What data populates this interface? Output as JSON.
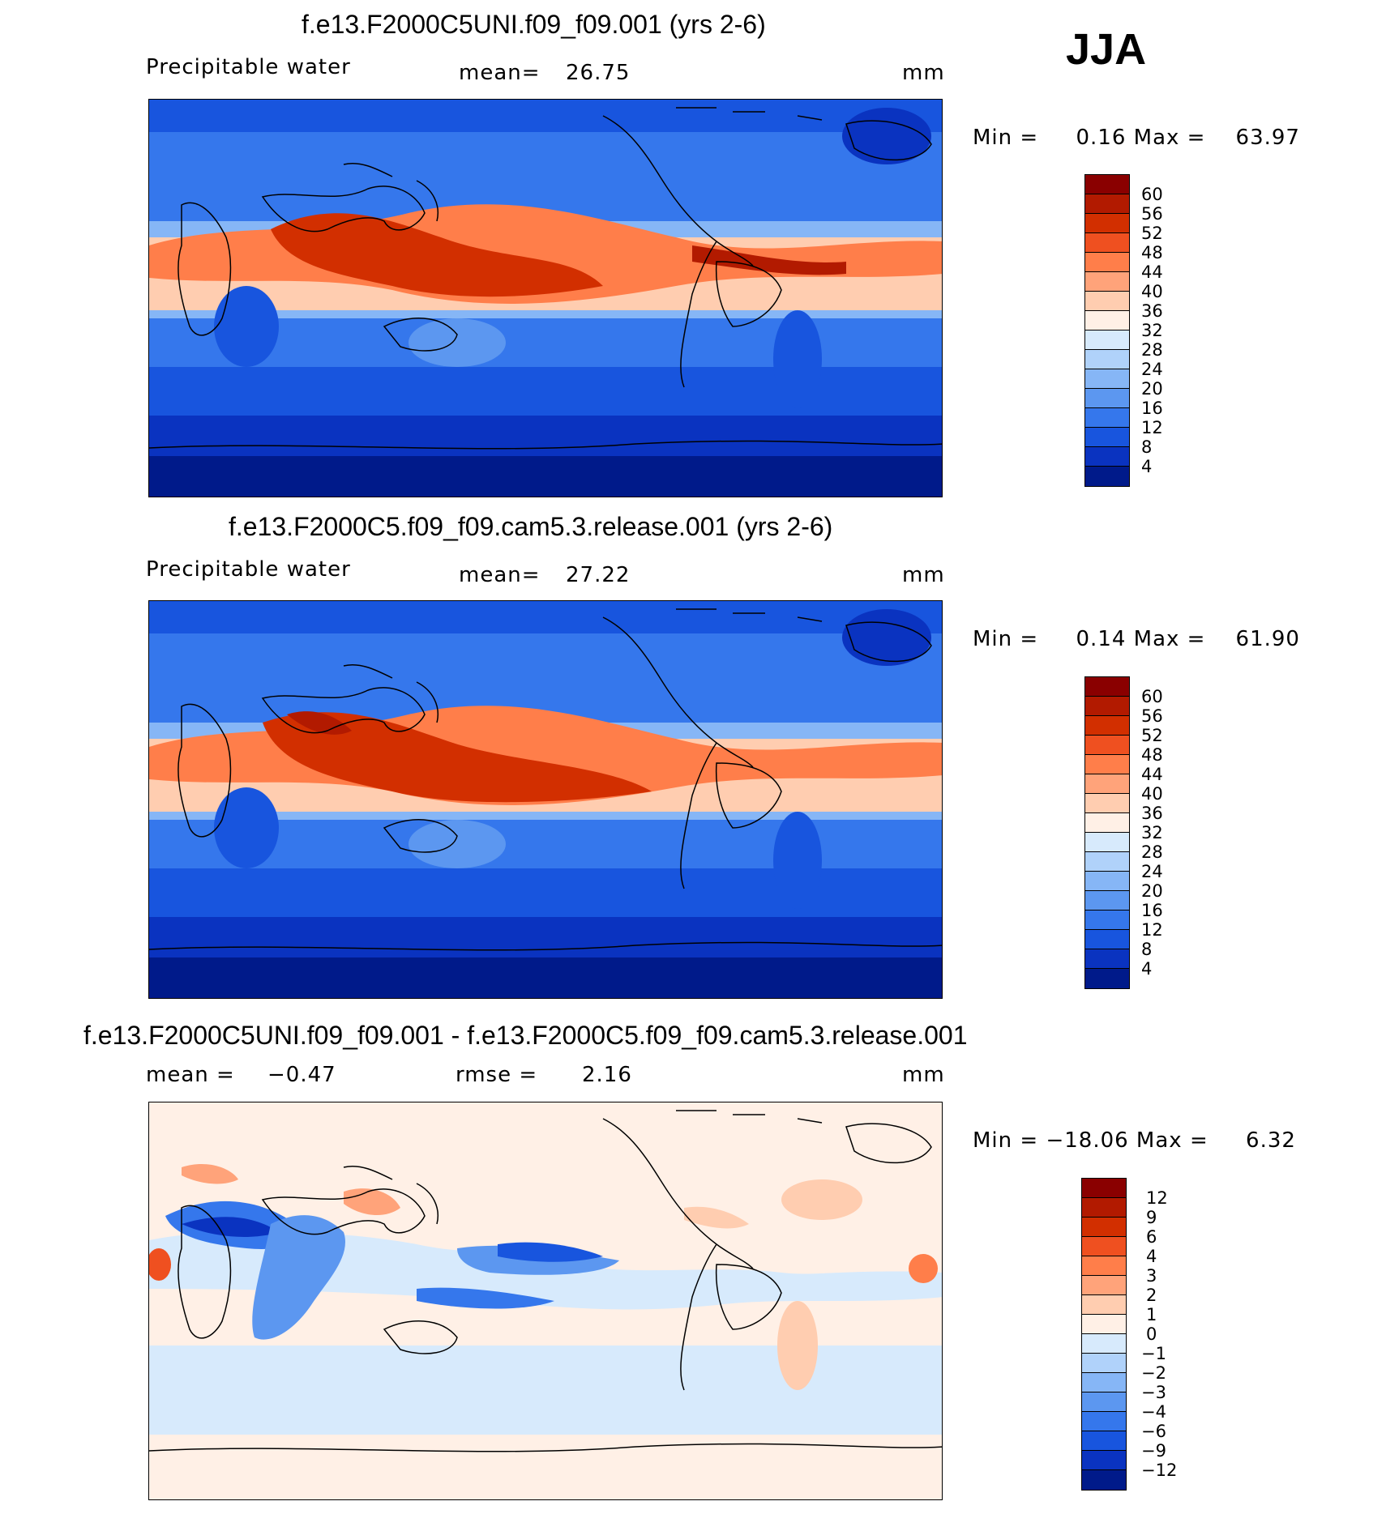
{
  "season": "JJA",
  "panels": [
    {
      "title": "f.e13.F2000C5UNI.f09_f09.001 (yrs 2-6)",
      "left_label": "Precipitable water",
      "stat_label": "mean=",
      "stat_value": "26.75",
      "stat2_label": "",
      "stat2_value": "",
      "units": "mm",
      "minmax": "Min =     0.16 Max =    63.97",
      "levels": [
        "60",
        "56",
        "52",
        "48",
        "44",
        "40",
        "36",
        "32",
        "28",
        "24",
        "20",
        "16",
        "12",
        "8",
        "4"
      ],
      "colors": [
        "#8a0000",
        "#b21a00",
        "#d22f00",
        "#ef5020",
        "#ff7e4a",
        "#ffa37a",
        "#ffcdb0",
        "#fff0e6",
        "#d7eafc",
        "#b0d2fa",
        "#86b6f6",
        "#5c97f0",
        "#3577ec",
        "#1855de",
        "#0a33c0",
        "#001a8a"
      ]
    },
    {
      "title": "f.e13.F2000C5.f09_f09.cam5.3.release.001 (yrs 2-6)",
      "left_label": "Precipitable water",
      "stat_label": "mean=",
      "stat_value": "27.22",
      "stat2_label": "",
      "stat2_value": "",
      "units": "mm",
      "minmax": "Min =     0.14 Max =    61.90",
      "levels": [
        "60",
        "56",
        "52",
        "48",
        "44",
        "40",
        "36",
        "32",
        "28",
        "24",
        "20",
        "16",
        "12",
        "8",
        "4"
      ],
      "colors": [
        "#8a0000",
        "#b21a00",
        "#d22f00",
        "#ef5020",
        "#ff7e4a",
        "#ffa37a",
        "#ffcdb0",
        "#fff0e6",
        "#d7eafc",
        "#b0d2fa",
        "#86b6f6",
        "#5c97f0",
        "#3577ec",
        "#1855de",
        "#0a33c0",
        "#001a8a"
      ]
    },
    {
      "title": "f.e13.F2000C5UNI.f09_f09.001 - f.e13.F2000C5.f09_f09.cam5.3.release.001",
      "left_label": "mean =",
      "stat_label": "",
      "stat_value": "−0.47",
      "stat2_label": "rmse =",
      "stat2_value": "2.16",
      "units": "mm",
      "minmax": "Min = −18.06 Max =     6.32",
      "levels": [
        "12",
        "9",
        "6",
        "4",
        "3",
        "2",
        "1",
        "0",
        "−1",
        "−2",
        "−3",
        "−4",
        "−6",
        "−9",
        "−12"
      ],
      "colors": [
        "#8a0000",
        "#b21a00",
        "#d22f00",
        "#ef5020",
        "#ff7e4a",
        "#ffa37a",
        "#ffcdb0",
        "#fff0e6",
        "#d7eafc",
        "#b0d2fa",
        "#86b6f6",
        "#5c97f0",
        "#3577ec",
        "#1855de",
        "#0a33c0",
        "#001a8a"
      ]
    }
  ]
}
